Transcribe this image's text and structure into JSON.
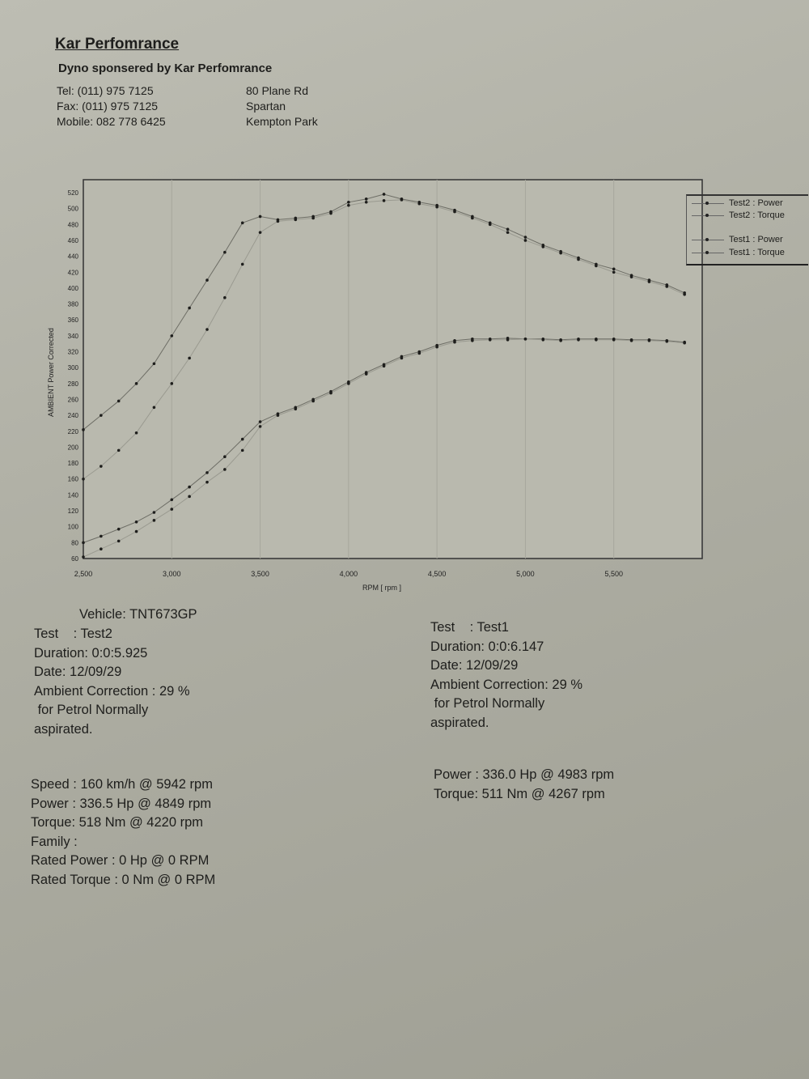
{
  "header": {
    "company": "Kar Perfomrance",
    "sponsor": "Dyno sponsered by Kar Perfomrance",
    "tel": "Tel: (011) 975 7125",
    "fax": "Fax: (011) 975 7125",
    "mobile": "Mobile: 082 778 6425",
    "address1": "80 Plane Rd",
    "address2": "Spartan",
    "address3": "Kempton Park"
  },
  "chart_data": {
    "type": "line",
    "title": "",
    "xlabel": "RPM [ rpm ]",
    "ylabel": "AMBIENT Power Corrected",
    "xlim": [
      2500,
      6000
    ],
    "ylim": [
      60,
      520
    ],
    "xticks": [
      "2,500",
      "3,000",
      "3,500",
      "4,000",
      "4,500",
      "5,000",
      "5,500"
    ],
    "xtick_values": [
      2500,
      3000,
      3500,
      4000,
      4500,
      5000,
      5500
    ],
    "yticks": [
      60,
      80,
      100,
      120,
      140,
      160,
      180,
      200,
      220,
      240,
      260,
      280,
      300,
      320,
      340,
      360,
      380,
      400,
      420,
      440,
      460,
      480,
      500,
      520
    ],
    "grid": "vertical",
    "legend_position": "right",
    "x": [
      2500,
      2600,
      2700,
      2800,
      2900,
      3000,
      3100,
      3200,
      3300,
      3400,
      3500,
      3600,
      3700,
      3800,
      3900,
      4000,
      4100,
      4200,
      4300,
      4400,
      4500,
      4600,
      4700,
      4800,
      4900,
      5000,
      5100,
      5200,
      5300,
      5400,
      5500,
      5600,
      5700,
      5800,
      5900
    ],
    "series": [
      {
        "name": "Test2 : Power",
        "values": [
          80,
          88,
          97,
          106,
          118,
          134,
          150,
          168,
          188,
          210,
          232,
          242,
          250,
          260,
          270,
          282,
          294,
          304,
          314,
          320,
          328,
          334,
          336,
          336,
          337,
          336,
          336,
          335,
          336,
          336,
          336,
          335,
          335,
          334,
          332
        ]
      },
      {
        "name": "Test2 : Torque",
        "values": [
          222,
          240,
          258,
          280,
          305,
          340,
          375,
          410,
          445,
          482,
          490,
          486,
          488,
          490,
          496,
          508,
          512,
          518,
          512,
          508,
          504,
          498,
          490,
          482,
          474,
          464,
          454,
          446,
          438,
          430,
          424,
          416,
          410,
          404,
          394
        ]
      },
      {
        "name": "Test1 : Power",
        "values": [
          62,
          72,
          82,
          94,
          108,
          122,
          138,
          156,
          172,
          196,
          226,
          240,
          248,
          258,
          268,
          280,
          292,
          302,
          312,
          318,
          326,
          332,
          334,
          335,
          335,
          336,
          335,
          334,
          335,
          335,
          335,
          334,
          334,
          333,
          331
        ]
      },
      {
        "name": "Test1 : Torque",
        "values": [
          160,
          176,
          196,
          218,
          250,
          280,
          312,
          348,
          388,
          430,
          470,
          484,
          486,
          488,
          494,
          504,
          508,
          510,
          511,
          506,
          502,
          496,
          488,
          480,
          470,
          460,
          452,
          444,
          436,
          428,
          420,
          414,
          408,
          402,
          392
        ]
      }
    ]
  },
  "test2": {
    "vehicle": "Vehicle: TNT673GP",
    "test": "Test    : Test2",
    "duration": "Duration: 0:0:5.925",
    "date": "Date: 12/09/29",
    "correction": "Ambient Correction : 29 %",
    "fuel1": " for Petrol Normally",
    "fuel2": "aspirated.",
    "speed": "Speed : 160 km/h @ 5942 rpm",
    "power": "Power : 336.5 Hp @ 4849 rpm",
    "torque": "Torque: 518 Nm @ 4220 rpm",
    "family": "Family :",
    "rated_power": "Rated Power : 0 Hp @ 0 RPM",
    "rated_torque": "Rated Torque : 0 Nm @ 0 RPM"
  },
  "test1": {
    "test": "Test    : Test1",
    "duration": "Duration: 0:0:6.147",
    "date": "Date: 12/09/29",
    "correction": "Ambient Correction: 29 %",
    "fuel1": " for Petrol Normally",
    "fuel2": "aspirated.",
    "power": "Power : 336.0 Hp @ 4983 rpm",
    "torque": "Torque: 511 Nm @ 4267 rpm"
  }
}
